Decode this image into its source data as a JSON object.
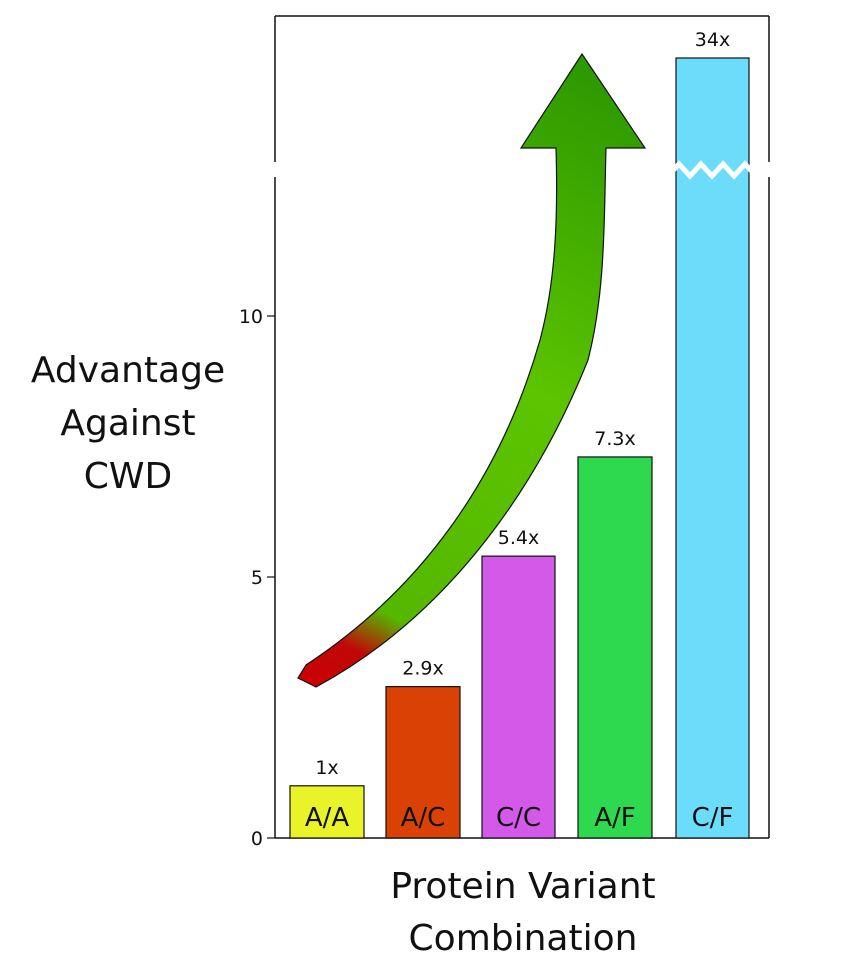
{
  "chart_data": {
    "type": "bar",
    "categories": [
      "A/A",
      "A/C",
      "C/C",
      "A/F",
      "C/F"
    ],
    "values": [
      1,
      2.9,
      5.4,
      7.3,
      34
    ],
    "data_labels": [
      "1x",
      "2.9x",
      "5.4x",
      "7.3x",
      "34x"
    ],
    "bar_colors": [
      "#e8f429",
      "#d94105",
      "#d35ae8",
      "#2ed94f",
      "#6bdcfa"
    ],
    "ylabel_lines": [
      "Advantage",
      "Against",
      "CWD"
    ],
    "xlabel_lines": [
      "Protein Variant",
      "Combination"
    ],
    "yticks": [
      0,
      5,
      10
    ],
    "ylim": [
      0,
      15
    ],
    "broken_axis": true,
    "grid": false,
    "arrow": {
      "from_color": "#cc0000",
      "to_color": "#2e9a00",
      "direction": "up"
    }
  }
}
